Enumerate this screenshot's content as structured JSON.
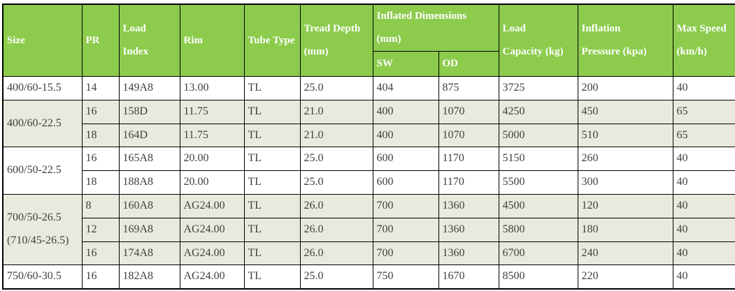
{
  "colors": {
    "header_bg": "#8ccb4c",
    "header_text": "#ffffff",
    "body_text": "#3f3f3f",
    "shaded_row_bg": "#e9e9dd",
    "border": "#000000"
  },
  "chart_data": {
    "type": "table",
    "title": "Tire specifications table",
    "header": {
      "size": "Size",
      "pr": "PR",
      "load_index": "Load\nIndex",
      "rim": "Rim",
      "tube_type": "Tube Type",
      "tread_depth": "Tread Depth\n(mm)",
      "inflated_dimensions": "Inflated Dimensions\n(mm)",
      "sw": "SW",
      "od": "OD",
      "load_capacity": "Load\nCapacity (kg)",
      "inflation_pressure": "Inflation\nPressure (kpa)",
      "max_speed": "Max Speed\n(km/h)"
    },
    "columns": [
      "Size",
      "PR",
      "Load Index",
      "Rim",
      "Tube Type",
      "Tread Depth (mm)",
      "SW (mm)",
      "OD (mm)",
      "Load Capacity (kg)",
      "Inflation Pressure (kpa)",
      "Max Speed (km/h)"
    ],
    "groups": [
      {
        "size": "400/60-15.5",
        "shaded": false,
        "rows": [
          {
            "pr": "14",
            "load_index": "149A8",
            "rim": "13.00",
            "tube_type": "TL",
            "tread_depth": "25.0",
            "sw": "404",
            "od": "875",
            "load_capacity": "3725",
            "inflation_pressure": "200",
            "max_speed": "40"
          }
        ]
      },
      {
        "size": "400/60-22.5",
        "shaded": true,
        "rows": [
          {
            "pr": "16",
            "load_index": "158D",
            "rim": "11.75",
            "tube_type": "TL",
            "tread_depth": "21.0",
            "sw": "400",
            "od": "1070",
            "load_capacity": "4250",
            "inflation_pressure": "450",
            "max_speed": "65"
          },
          {
            "pr": "18",
            "load_index": "164D",
            "rim": "11.75",
            "tube_type": "TL",
            "tread_depth": "21.0",
            "sw": "400",
            "od": "1070",
            "load_capacity": "5000",
            "inflation_pressure": "510",
            "max_speed": "65"
          }
        ]
      },
      {
        "size": "600/50-22.5",
        "shaded": false,
        "rows": [
          {
            "pr": "16",
            "load_index": "165A8",
            "rim": "20.00",
            "tube_type": "TL",
            "tread_depth": "25.0",
            "sw": "600",
            "od": "1170",
            "load_capacity": "5150",
            "inflation_pressure": "260",
            "max_speed": "40"
          },
          {
            "pr": "18",
            "load_index": "188A8",
            "rim": "20.00",
            "tube_type": "TL",
            "tread_depth": "25.0",
            "sw": "600",
            "od": "1170",
            "load_capacity": "5500",
            "inflation_pressure": "300",
            "max_speed": "40"
          }
        ]
      },
      {
        "size": "700/50-26.5\n(710/45-26.5)",
        "shaded": true,
        "rows": [
          {
            "pr": "8",
            "load_index": "160A8",
            "rim": "AG24.00",
            "tube_type": "TL",
            "tread_depth": "26.0",
            "sw": "700",
            "od": "1360",
            "load_capacity": "4500",
            "inflation_pressure": "120",
            "max_speed": "40"
          },
          {
            "pr": "12",
            "load_index": "169A8",
            "rim": "AG24.00",
            "tube_type": "TL",
            "tread_depth": "26.0",
            "sw": "700",
            "od": "1360",
            "load_capacity": "5800",
            "inflation_pressure": "180",
            "max_speed": "40"
          },
          {
            "pr": "16",
            "load_index": "174A8",
            "rim": "AG24.00",
            "tube_type": "TL",
            "tread_depth": "26.0",
            "sw": "700",
            "od": "1360",
            "load_capacity": "6700",
            "inflation_pressure": "240",
            "max_speed": "40"
          }
        ]
      },
      {
        "size": "750/60-30.5",
        "shaded": false,
        "rows": [
          {
            "pr": "16",
            "load_index": "182A8",
            "rim": "AG24.00",
            "tube_type": "TL",
            "tread_depth": "25.0",
            "sw": "750",
            "od": "1670",
            "load_capacity": "8500",
            "inflation_pressure": "220",
            "max_speed": "40"
          }
        ]
      }
    ]
  }
}
